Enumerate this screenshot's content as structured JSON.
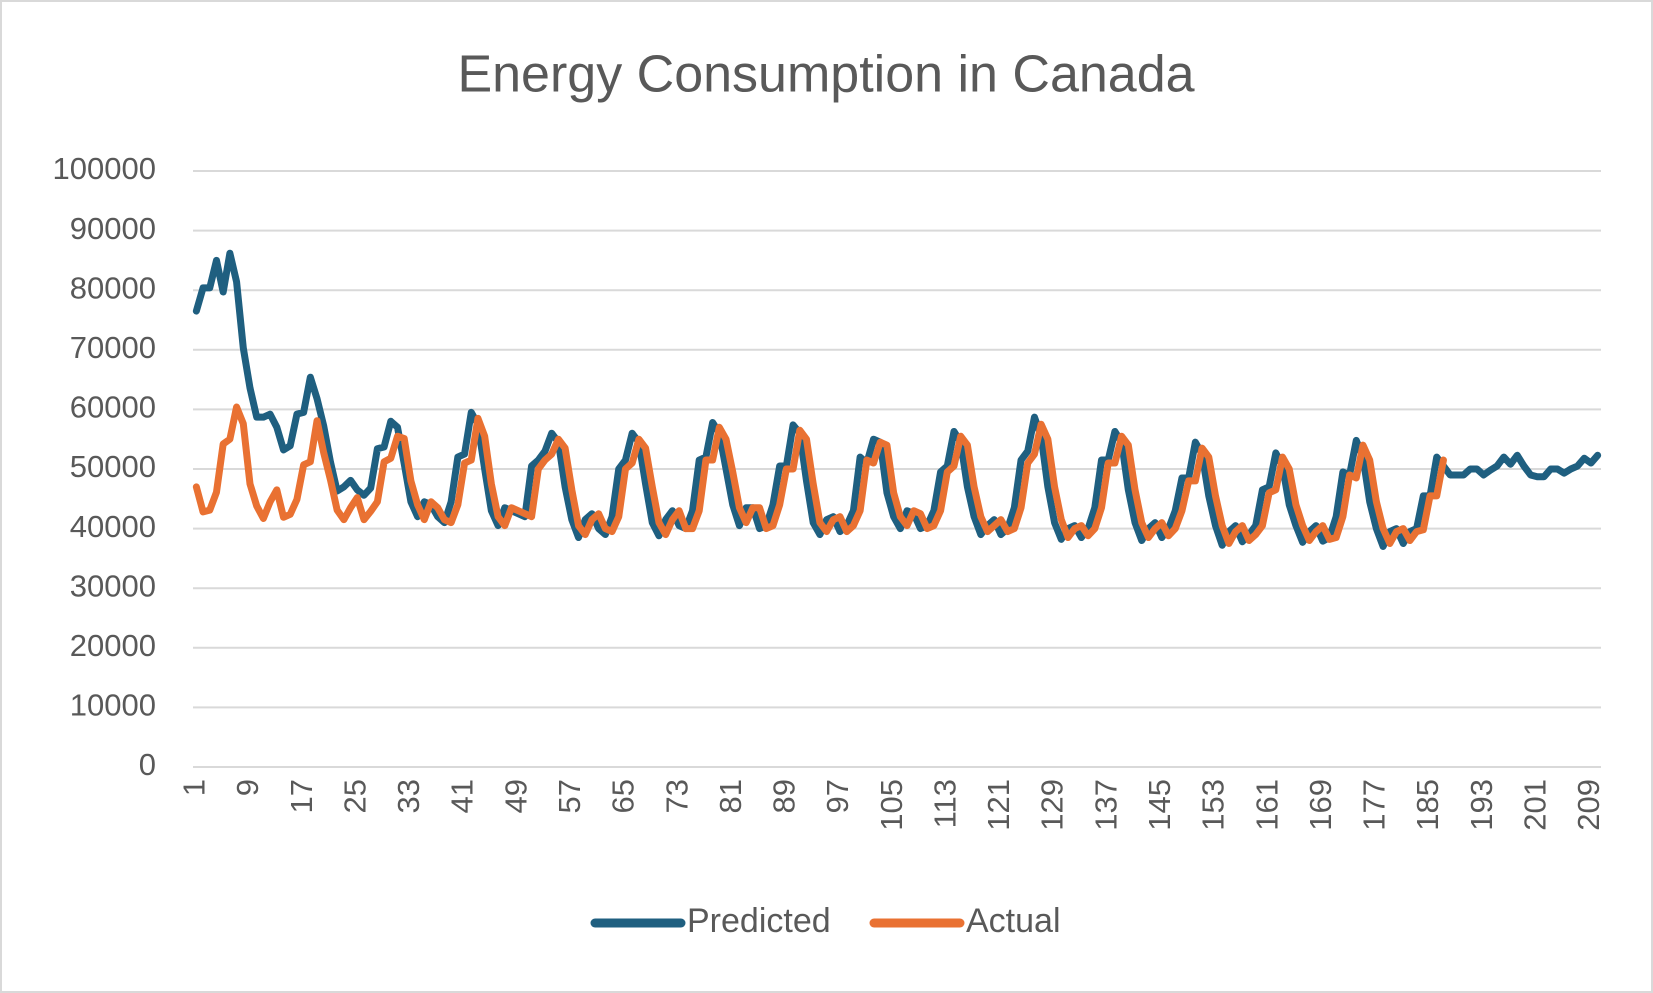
{
  "chart_data": {
    "type": "line",
    "title": "Energy Consumption in Canada",
    "categories": [
      1,
      null,
      null,
      null,
      null,
      null,
      null,
      null,
      9,
      null,
      null,
      null,
      null,
      null,
      null,
      null,
      17,
      null,
      null,
      null,
      null,
      null,
      null,
      null,
      25,
      null,
      null,
      null,
      null,
      null,
      null,
      null,
      33,
      null,
      null,
      null,
      null,
      null,
      null,
      null,
      41,
      null,
      null,
      null,
      null,
      null,
      null,
      null,
      49,
      null,
      null,
      null,
      null,
      null,
      null,
      null,
      57,
      null,
      null,
      null,
      null,
      null,
      null,
      null,
      65,
      null,
      null,
      null,
      null,
      null,
      null,
      null,
      73,
      null,
      null,
      null,
      null,
      null,
      null,
      null,
      81,
      null,
      null,
      null,
      null,
      null,
      null,
      null,
      89,
      null,
      null,
      null,
      null,
      null,
      null,
      null,
      97,
      null,
      null,
      null,
      null,
      null,
      null,
      null,
      105,
      null,
      null,
      null,
      null,
      null,
      null,
      null,
      113,
      null,
      null,
      null,
      null,
      null,
      null,
      null,
      121,
      null,
      null,
      null,
      null,
      null,
      null,
      null,
      129,
      null,
      null,
      null,
      null,
      null,
      null,
      null,
      137,
      null,
      null,
      null,
      null,
      null,
      null,
      null,
      145,
      null,
      null,
      null,
      null,
      null,
      null,
      null,
      153,
      null,
      null,
      null,
      null,
      null,
      null,
      null,
      161,
      null,
      null,
      null,
      null,
      null,
      null,
      null,
      169,
      null,
      null,
      null,
      null,
      null,
      null,
      null,
      177,
      null,
      null,
      null,
      null,
      null,
      null,
      null,
      185,
      null,
      null,
      null,
      null,
      null,
      null,
      null,
      193,
      null,
      null,
      null,
      null,
      null,
      null,
      null,
      201,
      null,
      null,
      null,
      null,
      null,
      null,
      null,
      209,
      null
    ],
    "series": [
      {
        "name": "Predicted",
        "color": "#1f5f80",
        "values": [
          76500,
          80400,
          80400,
          85000,
          79700,
          86200,
          81400,
          70300,
          63600,
          58700,
          58700,
          59200,
          57000,
          53200,
          53900,
          59200,
          59500,
          65400,
          61800,
          57200,
          51200,
          46300,
          47000,
          48100,
          46500,
          45600,
          46800,
          53400,
          53700,
          58000,
          57000,
          50900,
          44500,
          42000,
          44500,
          44000,
          42000,
          41000,
          44500,
          52000,
          52500,
          59500,
          57500,
          50000,
          43000,
          40500,
          43500,
          43000,
          42500,
          42000,
          50500,
          51500,
          53000,
          56000,
          54500,
          47000,
          41500,
          38500,
          41500,
          42500,
          40000,
          39000,
          42000,
          50000,
          51500,
          56000,
          54500,
          47500,
          41000,
          38800,
          41500,
          43000,
          40500,
          40000,
          43000,
          51500,
          52000,
          57800,
          56000,
          50000,
          44000,
          40500,
          43500,
          43500,
          40000,
          40500,
          44000,
          50500,
          50500,
          57400,
          56000,
          48000,
          41000,
          39000,
          41500,
          42000,
          39500,
          40500,
          43000,
          52000,
          51000,
          55000,
          54500,
          46000,
          42000,
          40000,
          43000,
          42500,
          40000,
          40500,
          43000,
          49500,
          50500,
          56300,
          54500,
          47000,
          42000,
          39000,
          40500,
          41500,
          39000,
          40000,
          43500,
          51500,
          53000,
          58700,
          55500,
          47000,
          41000,
          38200,
          40000,
          40500,
          38500,
          40000,
          43500,
          51500,
          51500,
          56300,
          54500,
          46500,
          41000,
          38000,
          40000,
          41000,
          38500,
          40000,
          43000,
          48500,
          48500,
          54500,
          52500,
          45500,
          40500,
          37200,
          39500,
          40500,
          37800,
          39000,
          40500,
          46500,
          47000,
          52700,
          50500,
          44000,
          40500,
          37700,
          39500,
          40500,
          37900,
          38500,
          42000,
          49500,
          49000,
          54800,
          52000,
          44500,
          40000,
          37000,
          39500,
          40000,
          37500,
          39500,
          40000,
          45500,
          45500,
          52000,
          50500,
          49000,
          49000,
          49000,
          50000,
          50000,
          49000,
          49800,
          50500,
          52000,
          50800,
          52300,
          50500,
          49000,
          48700,
          48700,
          50000,
          50000,
          49300,
          50000,
          50500,
          51800,
          51000,
          52300
        ]
      },
      {
        "name": "Actual",
        "color": "#e97132",
        "values": [
          47000,
          42800,
          43100,
          46100,
          54200,
          55000,
          60400,
          57600,
          47500,
          43800,
          41700,
          44500,
          46500,
          41900,
          42400,
          44900,
          50700,
          51200,
          58100,
          52700,
          48200,
          43100,
          41500,
          43500,
          45200,
          41500,
          42900,
          44500,
          51200,
          51800,
          55500,
          55100,
          48000,
          44000,
          41500,
          44500,
          43500,
          41500,
          41000,
          44000,
          51000,
          51500,
          58500,
          55500,
          47500,
          42000,
          40500,
          43500,
          43000,
          42500,
          42000,
          50000,
          51500,
          52500,
          55000,
          53500,
          46500,
          40500,
          39000,
          41500,
          42500,
          40000,
          39500,
          42000,
          50000,
          51000,
          55000,
          53500,
          47000,
          41000,
          39000,
          41500,
          43000,
          40000,
          40000,
          43000,
          51500,
          51500,
          57000,
          55000,
          49500,
          43500,
          41000,
          43500,
          43500,
          40000,
          40500,
          44000,
          50000,
          50000,
          56500,
          55000,
          47500,
          41000,
          39500,
          41500,
          42000,
          39500,
          40500,
          43000,
          51500,
          51000,
          54500,
          54000,
          46000,
          42000,
          40500,
          43000,
          42500,
          40000,
          40500,
          43000,
          49500,
          50500,
          55500,
          54000,
          47000,
          42000,
          39500,
          40500,
          41500,
          39500,
          40000,
          43500,
          51000,
          52500,
          57500,
          55000,
          47000,
          41500,
          38500,
          40000,
          40500,
          38800,
          40000,
          43500,
          51000,
          51000,
          55500,
          54000,
          46500,
          41000,
          38500,
          40000,
          41000,
          38800,
          40000,
          43000,
          48000,
          48000,
          53500,
          52000,
          45500,
          40500,
          37500,
          39500,
          40500,
          38000,
          39000,
          40500,
          46000,
          46500,
          52000,
          50000,
          44000,
          40500,
          38000,
          39500,
          40500,
          38200,
          38500,
          42000,
          49000,
          48500,
          54000,
          51500,
          44500,
          40000,
          37500,
          39500,
          40000,
          38000,
          39500,
          39800,
          45500,
          45500,
          51500,
          null,
          null,
          null,
          null,
          null,
          null,
          null,
          null,
          null,
          null,
          null,
          null,
          null,
          null,
          null,
          null,
          null,
          null,
          null,
          null,
          null,
          null,
          null
        ]
      }
    ],
    "ylim": [
      0,
      100000
    ],
    "yticks": [
      0,
      10000,
      20000,
      30000,
      40000,
      50000,
      60000,
      70000,
      80000,
      90000,
      100000
    ],
    "grid": true,
    "legend": "bottom"
  }
}
